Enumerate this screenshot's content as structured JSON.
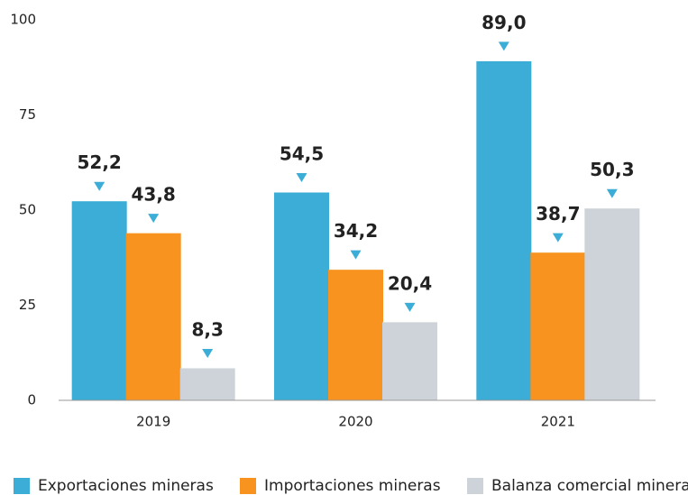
{
  "chart_data": {
    "type": "bar",
    "categories": [
      "2019",
      "2020",
      "2021"
    ],
    "series": [
      {
        "name": "Exportaciones mineras",
        "color": "#3badd6",
        "values": [
          52.2,
          54.5,
          89.0
        ],
        "value_labels": [
          "52,2",
          "54,5",
          "89,0"
        ]
      },
      {
        "name": "Importaciones mineras",
        "color": "#f7931e",
        "values": [
          43.8,
          34.2,
          38.7
        ],
        "value_labels": [
          "43,8",
          "34,2",
          "38,7"
        ]
      },
      {
        "name": "Balanza comercial minera",
        "color": "#cdd3d8",
        "values": [
          8.3,
          20.4,
          50.3
        ],
        "value_labels": [
          "8,3",
          "20,4",
          "50,3"
        ]
      }
    ],
    "ylim": [
      0,
      100
    ],
    "yticks": [
      0,
      25,
      50,
      75,
      100
    ],
    "grid": false,
    "legend": "bottom"
  }
}
